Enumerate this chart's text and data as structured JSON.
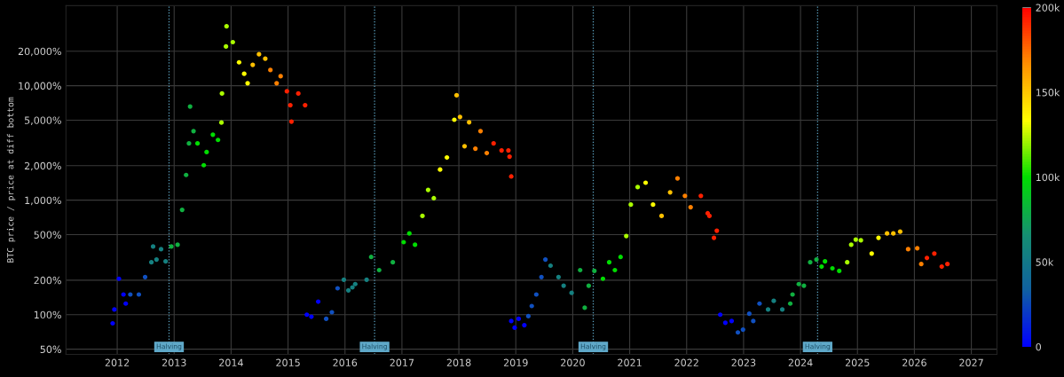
{
  "chart_data": {
    "type": "scatter",
    "ylabel": "BTC price / price at diff bottom",
    "log": "y",
    "grid": true,
    "marker": "circle",
    "xlim": [
      2011.1,
      2027.45
    ],
    "xticks": [
      2012,
      2013,
      2014,
      2015,
      2016,
      2017,
      2018,
      2019,
      2020,
      2021,
      2022,
      2023,
      2024,
      2025,
      2026,
      2027
    ],
    "ylim": [
      45,
      50000
    ],
    "yticks": [
      {
        "value": 50,
        "label": "50%"
      },
      {
        "value": 100,
        "label": "100%"
      },
      {
        "value": 200,
        "label": "200%"
      },
      {
        "value": 500,
        "label": "500%"
      },
      {
        "value": 1000,
        "label": "1,000%"
      },
      {
        "value": 2000,
        "label": "2,000%"
      },
      {
        "value": 5000,
        "label": "5,000%"
      },
      {
        "value": 10000,
        "label": "10,000%"
      },
      {
        "value": 20000,
        "label": "20,000%"
      }
    ],
    "clim": [
      0,
      200000
    ],
    "cticks": [
      {
        "value": 0,
        "label": "0"
      },
      {
        "value": 50000,
        "label": "50k"
      },
      {
        "value": 100000,
        "label": "100k"
      },
      {
        "value": 150000,
        "label": "150k"
      },
      {
        "value": 200000,
        "label": "200k"
      }
    ],
    "ref_lines": [
      {
        "axis": "x",
        "value": 2012.91,
        "label": "Halving",
        "color": "#5fa8c8",
        "line_style": "dotted"
      },
      {
        "axis": "x",
        "value": 2016.52,
        "label": "Halving",
        "color": "#5fa8c8",
        "line_style": "dotted"
      },
      {
        "axis": "x",
        "value": 2020.36,
        "label": "Halving",
        "color": "#5fa8c8",
        "line_style": "dotted"
      },
      {
        "axis": "x",
        "value": 2024.3,
        "label": "Halving",
        "color": "#5fa8c8",
        "line_style": "dotted"
      }
    ],
    "series": [
      {
        "x": [
          2011.92,
          2011.95,
          2012.03,
          2012.11,
          2012.15,
          2012.23,
          2012.38,
          2012.49,
          2012.6,
          2012.63,
          2012.69,
          2012.77,
          2012.85,
          2012.95,
          2013.06,
          2013.14,
          2013.21,
          2013.26,
          2013.28,
          2013.34,
          2013.41,
          2013.52,
          2013.57,
          2013.68,
          2013.77,
          2013.83,
          2013.84,
          2013.91,
          2013.92,
          2014.03,
          2014.14,
          2014.23,
          2014.29,
          2014.38,
          2014.49,
          2014.6,
          2014.69,
          2014.8,
          2014.87,
          2014.98,
          2015.04,
          2015.06,
          2015.18,
          2015.3
        ],
        "values": [
          84,
          111,
          206,
          150,
          125,
          150,
          150,
          213,
          287,
          394,
          303,
          373,
          292,
          394,
          408,
          823,
          1660,
          3130,
          6580,
          4010,
          3130,
          2020,
          2630,
          3730,
          3360,
          4760,
          8540,
          22000,
          33000,
          24000,
          16000,
          12700,
          10500,
          15200,
          18800,
          17200,
          13700,
          10500,
          12100,
          8930,
          6760,
          4860,
          8540,
          6760
        ],
        "colors": [
          "#0000ff",
          "#0000ff",
          "#0000ff",
          "#0000ff",
          "#0000ff",
          "#1050c0",
          "#1050c0",
          "#1050c0",
          "#158080",
          "#158080",
          "#158080",
          "#158080",
          "#158080",
          "#10b040",
          "#10b040",
          "#10b040",
          "#10b040",
          "#10b040",
          "#10b040",
          "#10b040",
          "#00dd00",
          "#00dd00",
          "#00dd00",
          "#00dd00",
          "#00dd00",
          "#aaff00",
          "#aaff00",
          "#aaff00",
          "#aaff00",
          "#aaff00",
          "#ffff00",
          "#ffff00",
          "#ffff00",
          "#ffc000",
          "#ffc000",
          "#ffc000",
          "#ff8000",
          "#ff8000",
          "#ff8000",
          "#ff2000",
          "#ff2000",
          "#ff2000",
          "#ff2000",
          "#ff2000"
        ]
      },
      {
        "x": [
          2015.33,
          2015.41,
          2015.53,
          2015.67,
          2015.77,
          2015.87,
          2015.98,
          2016.06,
          2016.13,
          2016.18,
          2016.38,
          2016.46,
          2016.6,
          2016.84,
          2017.03,
          2017.13,
          2017.23,
          2017.36,
          2017.46,
          2017.56,
          2017.67,
          2017.79,
          2017.92,
          2017.96,
          2018.02,
          2018.1,
          2018.18,
          2018.29,
          2018.38,
          2018.49,
          2018.61,
          2018.75,
          2018.87,
          2018.89,
          2018.92
        ],
        "values": [
          100,
          96,
          130,
          92,
          105,
          170,
          202,
          163,
          173,
          185,
          202,
          319,
          245,
          287,
          430,
          512,
          408,
          728,
          1230,
          1040,
          1850,
          2360,
          5040,
          8250,
          5330,
          2960,
          4790,
          2820,
          4010,
          2580,
          3130,
          2720,
          2720,
          2400,
          1610
        ],
        "colors": [
          "#0000ff",
          "#0000ff",
          "#0000ff",
          "#1050c0",
          "#1050c0",
          "#1050c0",
          "#158080",
          "#158080",
          "#158080",
          "#158080",
          "#158080",
          "#10b040",
          "#10b040",
          "#10b040",
          "#00dd00",
          "#00dd00",
          "#00dd00",
          "#aaff00",
          "#aaff00",
          "#aaff00",
          "#ffff00",
          "#ffff00",
          "#ffff00",
          "#ffc000",
          "#ffc000",
          "#ffc000",
          "#ffc000",
          "#ff8000",
          "#ff8000",
          "#ff8000",
          "#ff2000",
          "#ff2000",
          "#ff2000",
          "#ff2000",
          "#ff2000"
        ]
      },
      {
        "x": [
          2018.92,
          2018.98,
          2019.05,
          2019.15,
          2019.22,
          2019.28,
          2019.36,
          2019.45,
          2019.52,
          2019.61,
          2019.75,
          2019.84,
          2019.98,
          2020.13,
          2020.21,
          2020.28,
          2020.38,
          2020.53,
          2020.64,
          2020.74,
          2020.84,
          2020.94,
          2021.02,
          2021.14,
          2021.28,
          2021.41,
          2021.56,
          2021.71,
          2021.84,
          2021.97,
          2022.07,
          2022.25,
          2022.37,
          2022.4,
          2022.48,
          2022.53
        ],
        "values": [
          88,
          77,
          92,
          81,
          97,
          119,
          150,
          213,
          303,
          268,
          213,
          179,
          155,
          245,
          115,
          179,
          241,
          206,
          287,
          245,
          319,
          486,
          915,
          1300,
          1420,
          915,
          728,
          1170,
          1550,
          1090,
          868,
          1090,
          768,
          728,
          469,
          541
        ],
        "colors": [
          "#0000ff",
          "#0000ff",
          "#0000ff",
          "#0000ff",
          "#1050c0",
          "#1050c0",
          "#1050c0",
          "#1050c0",
          "#1050c0",
          "#158080",
          "#158080",
          "#158080",
          "#158080",
          "#10b040",
          "#10b040",
          "#10b040",
          "#10b040",
          "#00dd00",
          "#00dd00",
          "#00dd00",
          "#00dd00",
          "#aaff00",
          "#aaff00",
          "#aaff00",
          "#ffff00",
          "#ffff00",
          "#ffc000",
          "#ffc000",
          "#ff8000",
          "#ff8000",
          "#ff8000",
          "#ff2000",
          "#ff2000",
          "#ff2000",
          "#ff2000",
          "#ff2000"
        ]
      },
      {
        "x": [
          2022.59,
          2022.68,
          2022.79,
          2022.9,
          2022.99,
          2023.1,
          2023.17,
          2023.28,
          2023.43,
          2023.53,
          2023.68,
          2023.82,
          2023.86,
          2023.97,
          2024.06,
          2024.17,
          2024.28,
          2024.37,
          2024.43,
          2024.56,
          2024.68,
          2024.82,
          2024.89,
          2024.97,
          2025.06,
          2025.25,
          2025.37,
          2025.52,
          2025.63,
          2025.75,
          2025.89,
          2026.05,
          2026.12,
          2026.22,
          2026.35,
          2026.48,
          2026.58
        ],
        "values": [
          100,
          85,
          88,
          70,
          74,
          102,
          88,
          125,
          111,
          132,
          111,
          125,
          150,
          185,
          179,
          287,
          303,
          263,
          292,
          254,
          241,
          287,
          408,
          453,
          446,
          342,
          469,
          512,
          512,
          531,
          373,
          380,
          277,
          313,
          342,
          263,
          277
        ],
        "colors": [
          "#0000ff",
          "#0000ff",
          "#0000ff",
          "#1050c0",
          "#1050c0",
          "#1050c0",
          "#1050c0",
          "#1050c0",
          "#158080",
          "#158080",
          "#158080",
          "#10b040",
          "#10b040",
          "#10b040",
          "#10b040",
          "#10b040",
          "#10b040",
          "#00dd00",
          "#00dd00",
          "#00dd00",
          "#00dd00",
          "#aaff00",
          "#aaff00",
          "#aaff00",
          "#aaff00",
          "#ffff00",
          "#ffff00",
          "#ffc000",
          "#ffc000",
          "#ffc000",
          "#ff8000",
          "#ff8000",
          "#ff8000",
          "#ff2000",
          "#ff2000",
          "#ff2000",
          "#ff2000"
        ]
      }
    ]
  }
}
